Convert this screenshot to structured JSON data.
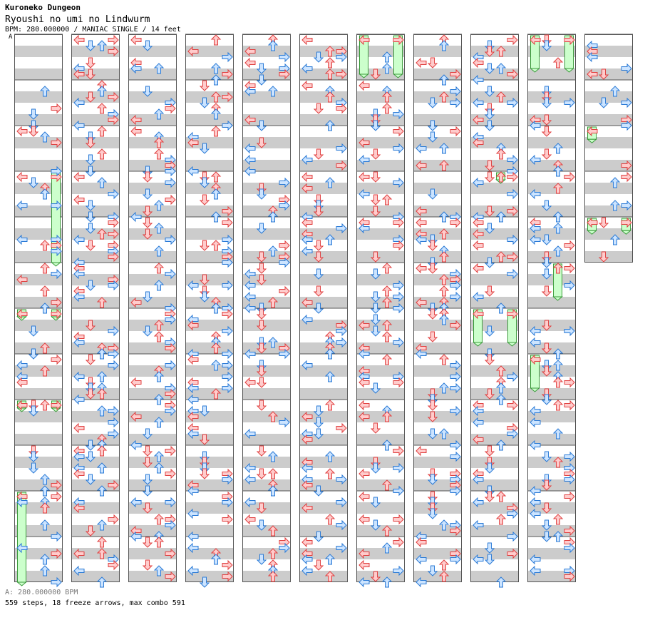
{
  "header": {
    "site_title": "Kuroneko Dungeon",
    "song_title": "Ryoushi no umi no Lindwurm",
    "chart_info": "BPM: 280.000000 / MANIAC SINGLE / 14 feet",
    "bpm_marker": "A"
  },
  "footer": {
    "bpm_legend": "A: 280.000000 BPM",
    "stats": "559 steps, 18 freeze arrows, max combo 591"
  },
  "chart_data": {
    "type": "step-chart",
    "bpm": 280,
    "difficulty": "MANIAC SINGLE",
    "rating": "14 feet",
    "steps": 559,
    "freeze_arrows": 18,
    "max_combo": 591,
    "columns": 11,
    "measures_per_column": 12,
    "total_measures": 125,
    "visible_freezes": [
      {
        "measure": 3,
        "beat": 0,
        "lane": 3,
        "length_beats": 8
      },
      {
        "measure": 6,
        "beat": 0,
        "lane": 0,
        "length_beats": 0.5
      },
      {
        "measure": 6,
        "beat": 0,
        "lane": 3,
        "length_beats": 0.5
      },
      {
        "measure": 8,
        "beat": 0,
        "lane": 0,
        "length_beats": 0.5
      },
      {
        "measure": 8,
        "beat": 0,
        "lane": 3,
        "length_beats": 0.5
      },
      {
        "measure": 10,
        "beat": 0,
        "lane": 0,
        "length_beats": 8
      },
      {
        "measure": 72,
        "beat": 0,
        "lane": 0,
        "length_beats": 3.5
      },
      {
        "measure": 72,
        "beat": 0,
        "lane": 3,
        "length_beats": 3.5
      },
      {
        "measure": 99,
        "beat": 0,
        "lane": 2,
        "length_beats": 0.6
      },
      {
        "measure": 102,
        "beat": 0,
        "lane": 0,
        "length_beats": 3
      },
      {
        "measure": 102,
        "beat": 0,
        "lane": 3,
        "length_beats": 3
      },
      {
        "measure": 108,
        "beat": 0,
        "lane": 0,
        "length_beats": 3
      },
      {
        "measure": 108,
        "beat": 0,
        "lane": 3,
        "length_beats": 3
      },
      {
        "measure": 113,
        "beat": 0,
        "lane": 2,
        "length_beats": 3
      },
      {
        "measure": 115,
        "beat": 0,
        "lane": 0,
        "length_beats": 3
      },
      {
        "measure": 122,
        "beat": 0,
        "lane": 0,
        "length_beats": 1.2
      },
      {
        "measure": 124,
        "beat": 0,
        "lane": 0,
        "length_beats": 1.2
      },
      {
        "measure": 124,
        "beat": 0,
        "lane": 3,
        "length_beats": 1.2
      }
    ]
  }
}
